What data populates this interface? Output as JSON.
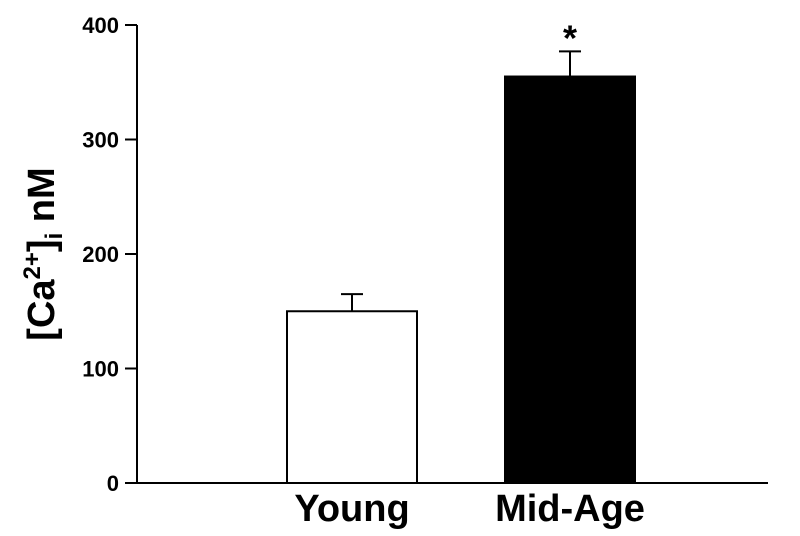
{
  "chart_data": {
    "type": "bar",
    "categories": [
      "Young",
      "Mid-Age"
    ],
    "values": [
      150,
      355
    ],
    "errors": [
      15,
      22
    ],
    "bar_colors": [
      "#ffffff",
      "#000000"
    ],
    "significance": [
      "",
      "*"
    ],
    "ylabel": {
      "prefix": "[Ca",
      "superscript": "2+",
      "bracket": "]",
      "subscript": "i",
      "suffix": " nM"
    },
    "ylim": [
      0,
      400
    ],
    "yticks": [
      0,
      100,
      200,
      300,
      400
    ],
    "grid": false
  }
}
